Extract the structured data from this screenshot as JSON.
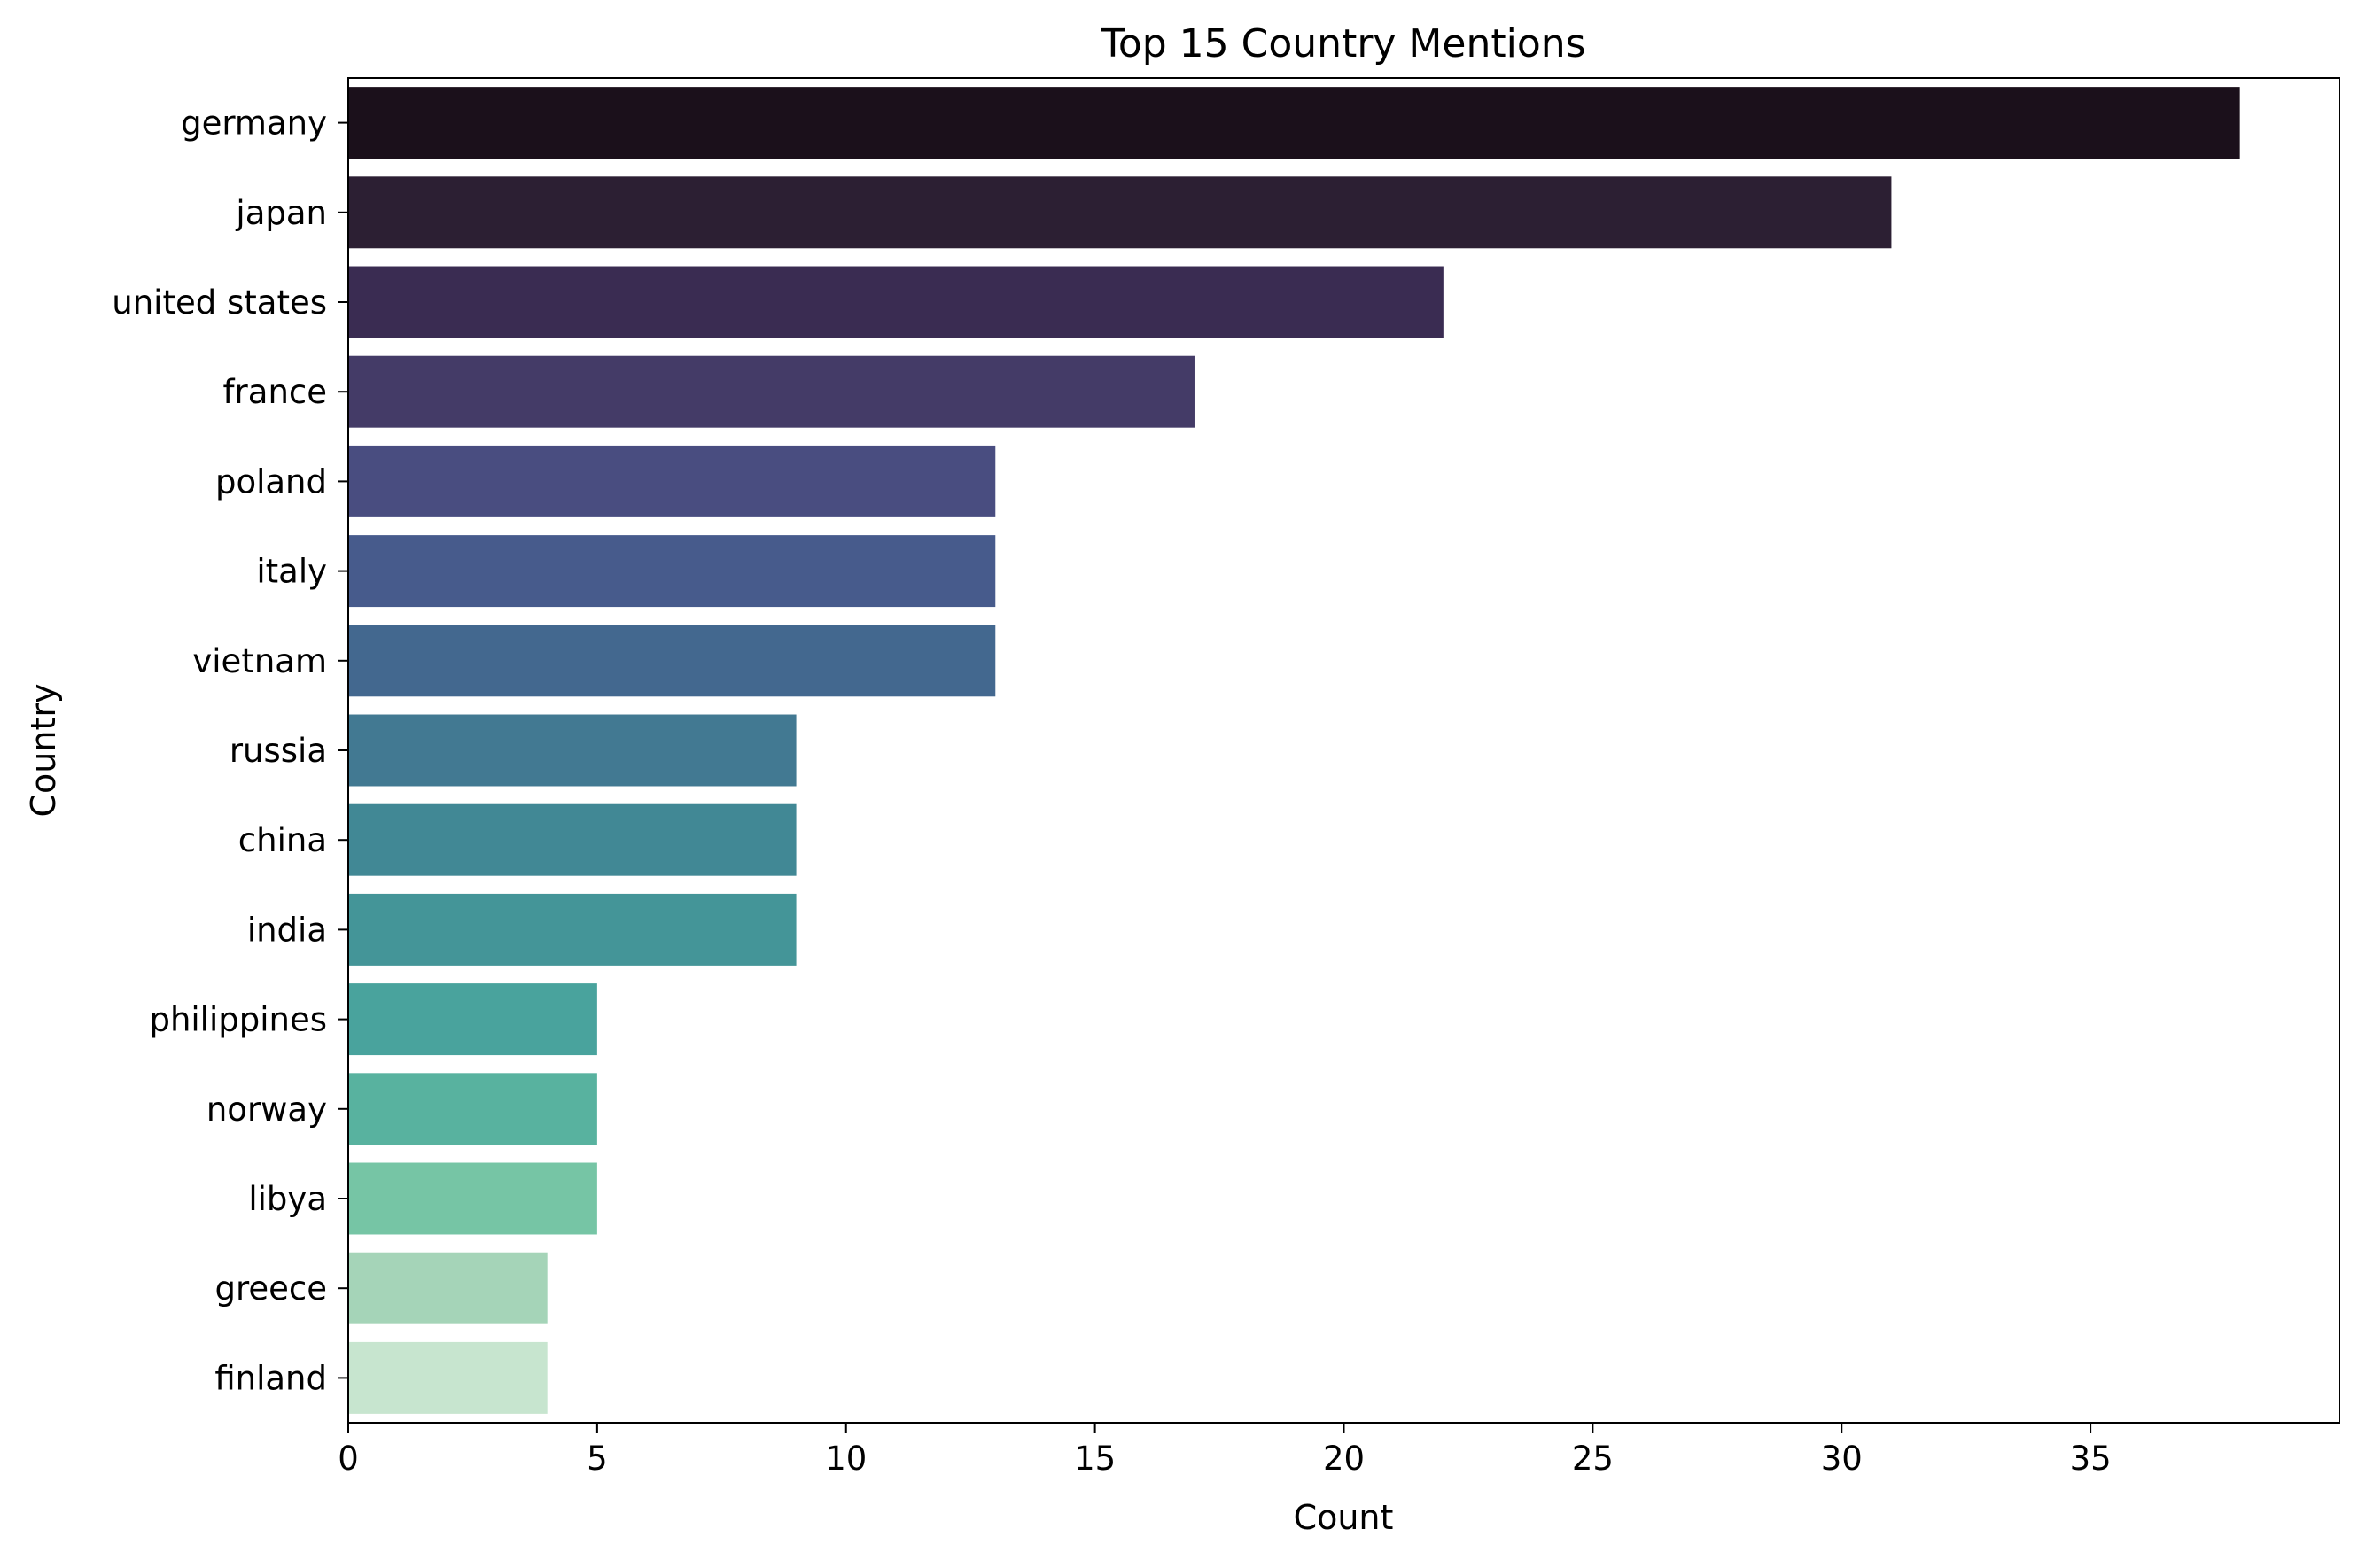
{
  "chart_data": {
    "type": "bar",
    "orientation": "horizontal",
    "title": "Top 15 Country Mentions",
    "xlabel": "Count",
    "ylabel": "Country",
    "xlim": [
      0,
      40
    ],
    "xticks": [
      0,
      5,
      10,
      15,
      20,
      25,
      30,
      35
    ],
    "grid": false,
    "legend": "none",
    "categories": [
      "germany",
      "japan",
      "united states",
      "france",
      "poland",
      "italy",
      "vietnam",
      "russia",
      "china",
      "india",
      "philippines",
      "norway",
      "libya",
      "greece",
      "finland"
    ],
    "values": [
      38,
      31,
      22,
      17,
      13,
      13,
      13,
      9,
      9,
      9,
      5,
      5,
      5,
      4,
      4
    ],
    "colors": [
      "#1b101b",
      "#2c1f33",
      "#3a2c52",
      "#443b67",
      "#494d80",
      "#475b8c",
      "#43688f",
      "#427992",
      "#418895",
      "#449598",
      "#49a39d",
      "#58b29f",
      "#76c5a5",
      "#a5d4b8",
      "#c7e5cf"
    ]
  }
}
